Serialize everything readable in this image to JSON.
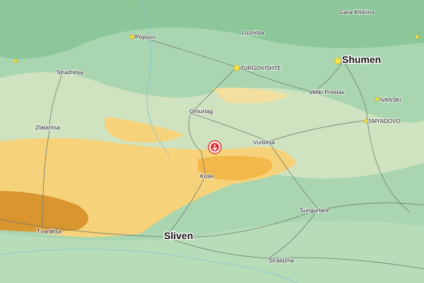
{
  "map": {
    "places": [
      {
        "name": "Gara Khitrino"
      },
      {
        "name": "Popovo"
      },
      {
        "name": "Loznitsa"
      },
      {
        "name": "Shumen"
      },
      {
        "name": "Strazhitsa"
      },
      {
        "name": "TURGOVISHTE"
      },
      {
        "name": "Veliki Preslav"
      },
      {
        "name": "IVANSKI"
      },
      {
        "name": "Omurtag"
      },
      {
        "name": "SMYADOVO"
      },
      {
        "name": "Zlataritsa"
      },
      {
        "name": "Vurbitsa"
      },
      {
        "name": "Kotel"
      },
      {
        "name": "Sungurlare"
      },
      {
        "name": "Tvarditsa"
      },
      {
        "name": "Sliven"
      },
      {
        "name": "Straldzha"
      }
    ]
  }
}
